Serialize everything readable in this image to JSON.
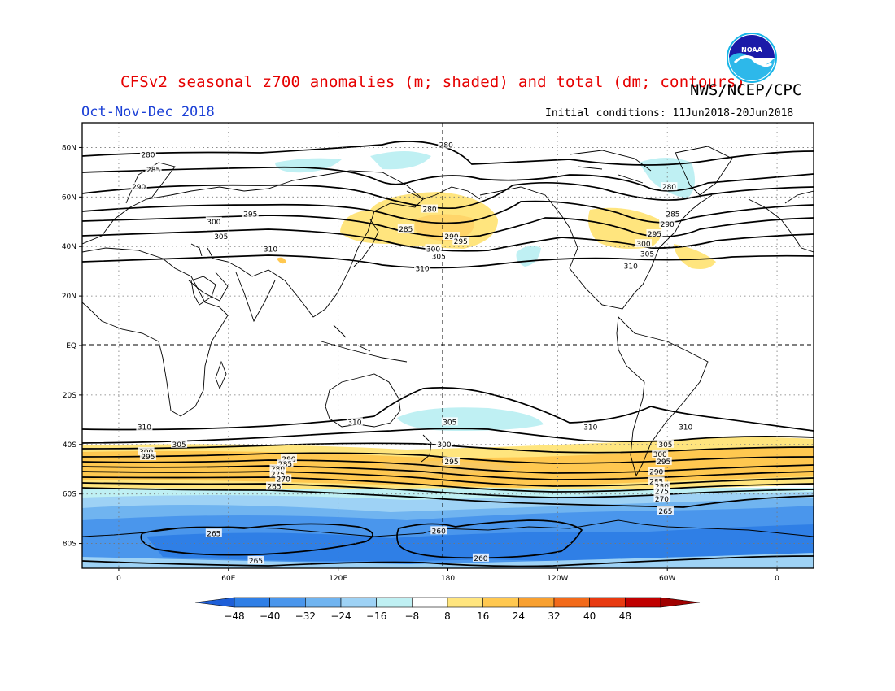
{
  "title": "CFSv2 seasonal z700 anomalies (m; shaded) and total (dm; contours)",
  "agency": "NWS/NCEP/CPC",
  "season": "Oct-Nov-Dec 2018",
  "initial_conditions": "Initial conditions: 11Jun2018-20Jun2018",
  "logo_text": "NOAA",
  "lat_labels": [
    {
      "lat": 80,
      "label": "80N"
    },
    {
      "lat": 60,
      "label": "60N"
    },
    {
      "lat": 40,
      "label": "40N"
    },
    {
      "lat": 20,
      "label": "20N"
    },
    {
      "lat": 0,
      "label": "EQ"
    },
    {
      "lat": -20,
      "label": "20S"
    },
    {
      "lat": -40,
      "label": "40S"
    },
    {
      "lat": -60,
      "label": "60S"
    },
    {
      "lat": -80,
      "label": "80S"
    }
  ],
  "lon_labels": [
    {
      "lon": 0,
      "label": "0"
    },
    {
      "lon": 60,
      "label": "60E"
    },
    {
      "lon": 120,
      "label": "120E"
    },
    {
      "lon": 180,
      "label": "180"
    },
    {
      "lon": 240,
      "label": "120W"
    },
    {
      "lon": 300,
      "label": "60W"
    },
    {
      "lon": 360,
      "label": "0"
    }
  ],
  "colorbar": {
    "labels": [
      "-48",
      "-40",
      "-32",
      "-24",
      "-16",
      "-8",
      "8",
      "16",
      "24",
      "32",
      "40",
      "48"
    ],
    "colors": [
      "#1e5fd8",
      "#2f7fe6",
      "#4a96ec",
      "#70b4f0",
      "#9ed2f5",
      "#bff0f3",
      "#ffffff",
      "#ffe57e",
      "#ffc850",
      "#f8a030",
      "#f26a1a",
      "#e83a10",
      "#c00000",
      "#a00000"
    ]
  },
  "chart_data": {
    "type": "map",
    "projection": "cylindrical equidistant",
    "lon_range": [
      -20,
      380
    ],
    "lat_range": [
      -90,
      90
    ],
    "contour_units": "dm",
    "shading_units": "m",
    "contour_levels_labeled": [
      {
        "lat": 77,
        "lon": 16,
        "label": "280"
      },
      {
        "lat": 71,
        "lon": 19,
        "label": "285"
      },
      {
        "lat": 64,
        "lon": 11,
        "label": "290"
      },
      {
        "lat": 53,
        "lon": 72,
        "label": "295"
      },
      {
        "lat": 50,
        "lon": 52,
        "label": "300"
      },
      {
        "lat": 44,
        "lon": 56,
        "label": "305"
      },
      {
        "lat": 39,
        "lon": 83,
        "label": "310"
      },
      {
        "lat": 81,
        "lon": 179,
        "label": "280"
      },
      {
        "lat": 55,
        "lon": 170,
        "label": "280"
      },
      {
        "lat": 47,
        "lon": 157,
        "label": "285"
      },
      {
        "lat": 44,
        "lon": 182,
        "label": "290"
      },
      {
        "lat": 42,
        "lon": 187,
        "label": "295"
      },
      {
        "lat": 39,
        "lon": 172,
        "label": "300"
      },
      {
        "lat": 36,
        "lon": 175,
        "label": "305"
      },
      {
        "lat": 31,
        "lon": 166,
        "label": "310"
      },
      {
        "lat": 64,
        "lon": 301,
        "label": "280"
      },
      {
        "lat": 53,
        "lon": 303,
        "label": "285"
      },
      {
        "lat": 49,
        "lon": 300,
        "label": "290"
      },
      {
        "lat": 45,
        "lon": 293,
        "label": "295"
      },
      {
        "lat": 41,
        "lon": 287,
        "label": "300"
      },
      {
        "lat": 37,
        "lon": 289,
        "label": "305"
      },
      {
        "lat": 32,
        "lon": 280,
        "label": "310"
      },
      {
        "lat": -33,
        "lon": 14,
        "label": "310"
      },
      {
        "lat": -40,
        "lon": 33,
        "label": "305"
      },
      {
        "lat": -43,
        "lon": 15,
        "label": "300"
      },
      {
        "lat": -45,
        "lon": 16,
        "label": "295"
      },
      {
        "lat": -31,
        "lon": 129,
        "label": "310"
      },
      {
        "lat": -31,
        "lon": 181,
        "label": "305"
      },
      {
        "lat": -40,
        "lon": 178,
        "label": "300"
      },
      {
        "lat": -47,
        "lon": 182,
        "label": "295"
      },
      {
        "lat": -46,
        "lon": 93,
        "label": "290"
      },
      {
        "lat": -48,
        "lon": 91,
        "label": "285"
      },
      {
        "lat": -50,
        "lon": 87,
        "label": "280"
      },
      {
        "lat": -52,
        "lon": 87,
        "label": "275"
      },
      {
        "lat": -54,
        "lon": 90,
        "label": "270"
      },
      {
        "lat": -57,
        "lon": 85,
        "label": "265"
      },
      {
        "lat": -33,
        "lon": 258,
        "label": "310"
      },
      {
        "lat": -33,
        "lon": 310,
        "label": "310"
      },
      {
        "lat": -40,
        "lon": 299,
        "label": "305"
      },
      {
        "lat": -44,
        "lon": 296,
        "label": "300"
      },
      {
        "lat": -47,
        "lon": 298,
        "label": "295"
      },
      {
        "lat": -51,
        "lon": 294,
        "label": "290"
      },
      {
        "lat": -55,
        "lon": 294,
        "label": "285"
      },
      {
        "lat": -57,
        "lon": 297,
        "label": "280"
      },
      {
        "lat": -59,
        "lon": 297,
        "label": "275"
      },
      {
        "lat": -62,
        "lon": 297,
        "label": "270"
      },
      {
        "lat": -67,
        "lon": 299,
        "label": "265"
      },
      {
        "lat": -75,
        "lon": 175,
        "label": "260"
      },
      {
        "lat": -76,
        "lon": 52,
        "label": "265"
      },
      {
        "lat": -87,
        "lon": 75,
        "label": "265"
      },
      {
        "lat": -86,
        "lon": 198,
        "label": "260"
      }
    ],
    "anomaly_regions": [
      {
        "region": "North Pacific / Aleutians",
        "sign": "positive",
        "max": 24
      },
      {
        "region": "Northwest Pacific / Japan",
        "sign": "positive",
        "max": 16
      },
      {
        "region": "Northeast North America / Atlantic",
        "sign": "positive",
        "max": 16
      },
      {
        "region": "Greenland",
        "sign": "negative",
        "min": -16
      },
      {
        "region": "Southern Ocean 40S-55S band",
        "sign": "positive",
        "max": 24
      },
      {
        "region": "Antarctica / 60S-90S",
        "sign": "negative",
        "min": -48
      },
      {
        "region": "South Pacific 30S",
        "sign": "negative",
        "min": -16
      }
    ]
  }
}
